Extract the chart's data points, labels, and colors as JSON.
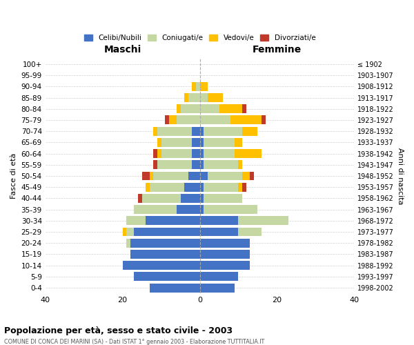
{
  "age_groups": [
    "0-4",
    "5-9",
    "10-14",
    "15-19",
    "20-24",
    "25-29",
    "30-34",
    "35-39",
    "40-44",
    "45-49",
    "50-54",
    "55-59",
    "60-64",
    "65-69",
    "70-74",
    "75-79",
    "80-84",
    "85-89",
    "90-94",
    "95-99",
    "100+"
  ],
  "birth_years": [
    "1998-2002",
    "1993-1997",
    "1988-1992",
    "1983-1987",
    "1978-1982",
    "1973-1977",
    "1968-1972",
    "1963-1967",
    "1958-1962",
    "1953-1957",
    "1948-1952",
    "1943-1947",
    "1938-1942",
    "1933-1937",
    "1928-1932",
    "1923-1927",
    "1918-1922",
    "1913-1917",
    "1908-1912",
    "1903-1907",
    "≤ 1902"
  ],
  "maschi": {
    "celibi": [
      13,
      17,
      20,
      18,
      18,
      17,
      14,
      6,
      5,
      4,
      3,
      2,
      2,
      2,
      2,
      0,
      0,
      0,
      0,
      0,
      0
    ],
    "coniugati": [
      0,
      0,
      0,
      0,
      1,
      2,
      5,
      11,
      10,
      9,
      9,
      9,
      8,
      8,
      9,
      6,
      5,
      3,
      1,
      0,
      0
    ],
    "vedovi": [
      0,
      0,
      0,
      0,
      0,
      1,
      0,
      0,
      0,
      1,
      1,
      0,
      1,
      1,
      1,
      2,
      1,
      1,
      1,
      0,
      0
    ],
    "divorziati": [
      0,
      0,
      0,
      0,
      0,
      0,
      0,
      0,
      1,
      0,
      2,
      1,
      1,
      0,
      0,
      1,
      0,
      0,
      0,
      0,
      0
    ]
  },
  "femmine": {
    "nubili": [
      9,
      10,
      13,
      13,
      13,
      10,
      10,
      1,
      1,
      1,
      2,
      1,
      1,
      1,
      1,
      0,
      0,
      0,
      0,
      0,
      0
    ],
    "coniugate": [
      0,
      0,
      0,
      0,
      0,
      6,
      13,
      14,
      10,
      9,
      9,
      9,
      8,
      8,
      10,
      8,
      5,
      2,
      0,
      0,
      0
    ],
    "vedove": [
      0,
      0,
      0,
      0,
      0,
      0,
      0,
      0,
      0,
      1,
      2,
      1,
      7,
      2,
      4,
      8,
      6,
      4,
      2,
      0,
      0
    ],
    "divorziate": [
      0,
      0,
      0,
      0,
      0,
      0,
      0,
      0,
      0,
      1,
      1,
      0,
      0,
      0,
      0,
      1,
      1,
      0,
      0,
      0,
      0
    ]
  },
  "colors": {
    "celibi": "#4472c4",
    "coniugati": "#c5d8a4",
    "vedovi": "#ffc000",
    "divorziati": "#c0392b"
  },
  "title": "Popolazione per età, sesso e stato civile - 2003",
  "subtitle": "COMUNE DI CONCA DEI MARINI (SA) - Dati ISTAT 1° gennaio 2003 - Elaborazione TUTTITALIA.IT",
  "xlabel_left": "Maschi",
  "xlabel_right": "Femmine",
  "ylabel_left": "Fasce di età",
  "ylabel_right": "Anni di nascita",
  "xlim": 40,
  "background_color": "#ffffff"
}
